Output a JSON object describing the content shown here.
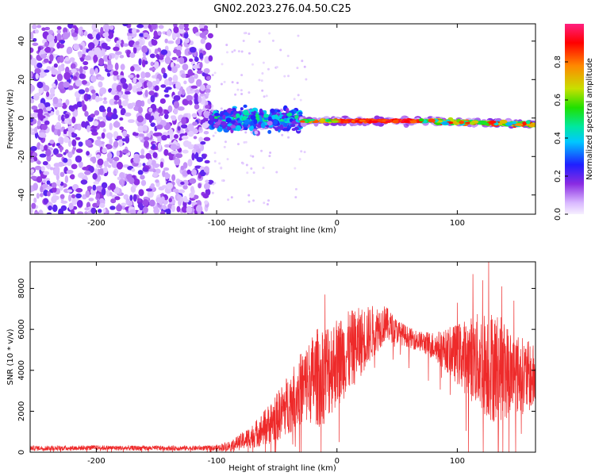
{
  "title": "GN02.2023.276.04.50.C25",
  "chart_data": [
    {
      "type": "heatmap",
      "title": "GN02.2023.276.04.50.C25",
      "xlabel": "Height of straight line (km)",
      "ylabel": "Frequency (Hz)",
      "xlim": [
        -255,
        165
      ],
      "ylim": [
        -50,
        49
      ],
      "x_ticks": [
        -200,
        -100,
        0,
        100
      ],
      "x_tick_labels": [
        "-200",
        "-100",
        "0",
        "100"
      ],
      "y_ticks": [
        -40,
        -20,
        0,
        20,
        40
      ],
      "y_tick_labels": [
        "-40",
        "-20",
        "0",
        "20",
        "40"
      ],
      "colorbar": {
        "label": "Normalized spectral amplitude",
        "range": [
          0,
          1
        ],
        "ticks": [
          0.0,
          0.2,
          0.4,
          0.6,
          0.8
        ],
        "tick_labels": [
          "0.0",
          "0.2",
          "0.4",
          "0.6",
          "0.8"
        ],
        "colors": [
          "#f6f0ff",
          "#d9b8ff",
          "#8a2be2",
          "#1f1fff",
          "#00c8ff",
          "#00e8a0",
          "#20e000",
          "#c8e000",
          "#ff8800",
          "#ff0000",
          "#ff2080"
        ]
      },
      "regions": [
        {
          "x_range": [
            -255,
            -105
          ],
          "freq_range": [
            -50,
            49
          ],
          "description": "broadband noise",
          "amplitude": 0.15
        },
        {
          "x_range": [
            -105,
            -30
          ],
          "freq_range": [
            -15,
            10
          ],
          "description": "scattered energy",
          "amplitude": 0.35
        },
        {
          "x_range": [
            -30,
            165
          ],
          "freq_range": [
            -5,
            3
          ],
          "description": "narrow band near 0 Hz",
          "amplitude": 0.9
        }
      ]
    },
    {
      "type": "line",
      "xlabel": "Height of straight line (km)",
      "ylabel": "SNR (10 * v/v)",
      "xlim": [
        -255,
        165
      ],
      "ylim": [
        0,
        9300
      ],
      "x_ticks": [
        -200,
        -100,
        0,
        100
      ],
      "x_tick_labels": [
        "-200",
        "-100",
        "0",
        "100"
      ],
      "y_ticks": [
        0,
        2000,
        4000,
        6000,
        8000
      ],
      "y_tick_labels": [
        "0",
        "2000",
        "4000",
        "6000",
        "8000"
      ],
      "color": "#ee2a2a",
      "series": [
        {
          "name": "SNR",
          "x": [
            -255,
            -230,
            -200,
            -170,
            -140,
            -110,
            -100,
            -90,
            -80,
            -70,
            -60,
            -50,
            -40,
            -30,
            -20,
            -15,
            -10,
            -5,
            0,
            10,
            20,
            30,
            40,
            50,
            60,
            70,
            80,
            90,
            100,
            110,
            120,
            130,
            140,
            150,
            165
          ],
          "y": [
            200,
            200,
            220,
            200,
            200,
            200,
            200,
            300,
            500,
            800,
            1200,
            1700,
            2400,
            3100,
            3600,
            3700,
            3900,
            4200,
            4400,
            4900,
            5400,
            5900,
            6300,
            5900,
            5600,
            5400,
            5200,
            5000,
            4800,
            4600,
            4400,
            4200,
            4000,
            3800,
            3600
          ],
          "spread": [
            120,
            120,
            120,
            120,
            120,
            120,
            150,
            250,
            400,
            600,
            900,
            1200,
            1500,
            1800,
            2200,
            2500,
            2500,
            2400,
            2200,
            2000,
            1700,
            1300,
            900,
            600,
            500,
            500,
            700,
            1000,
            1500,
            2000,
            2500,
            2800,
            2400,
            2000,
            1600
          ],
          "peaks": [
            {
              "x": -10,
              "y": 7700
            },
            {
              "x": 40,
              "y": 7000
            },
            {
              "x": 100,
              "y": 7300
            },
            {
              "x": 113,
              "y": 8700
            },
            {
              "x": 121,
              "y": 8400
            },
            {
              "x": 126,
              "y": 9300
            },
            {
              "x": 137,
              "y": 8100
            },
            {
              "x": 147,
              "y": 7400
            }
          ]
        }
      ]
    }
  ]
}
